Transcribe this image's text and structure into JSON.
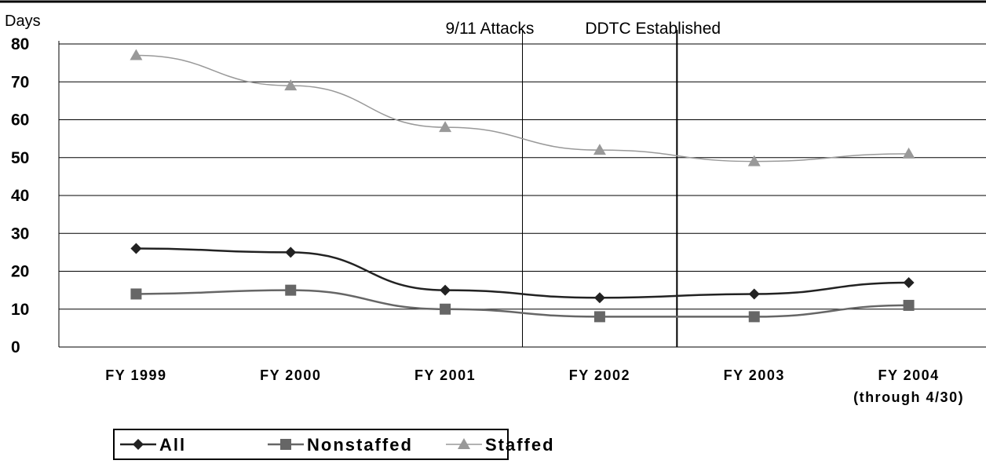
{
  "chart_data": {
    "type": "line",
    "ylabel": "Days",
    "ylim": [
      0,
      80
    ],
    "yticks": [
      "0",
      "10",
      "20",
      "30",
      "40",
      "50",
      "60",
      "70",
      "80"
    ],
    "categories": [
      "FY 1999",
      "FY 2000",
      "FY 2001",
      "FY 2002",
      "FY 2003",
      "FY 2004"
    ],
    "category_sublabels": [
      "",
      "",
      "",
      "",
      "",
      "(through 4/30)"
    ],
    "series": [
      {
        "name": "All",
        "values": [
          26,
          25,
          15,
          13,
          14,
          17
        ],
        "color": "#222222",
        "marker": "diamond"
      },
      {
        "name": "Nonstaffed",
        "values": [
          14,
          15,
          10,
          8,
          8,
          11
        ],
        "color": "#666666",
        "marker": "square"
      },
      {
        "name": "Staffed",
        "values": [
          77,
          69,
          58,
          52,
          49,
          51
        ],
        "color": "#999999",
        "marker": "triangle"
      }
    ],
    "annotations": [
      {
        "text": "9/11 Attacks",
        "between": [
          "FY 2001",
          "FY 2002"
        ]
      },
      {
        "text": "DDTC Established",
        "between": [
          "FY 2002",
          "FY 2003"
        ]
      }
    ],
    "grid": true,
    "legend_position": "bottom-left"
  }
}
